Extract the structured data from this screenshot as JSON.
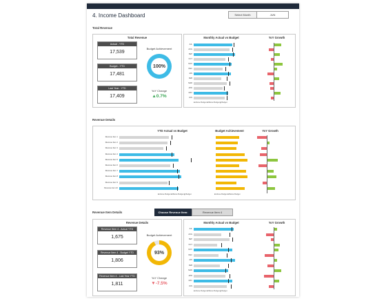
{
  "header": {
    "title": "4. Income Dashboard",
    "select_month_label": "Select Month",
    "select_month_value": "JUN"
  },
  "sections": {
    "total_revenue": "Total Revenue",
    "revenue_details": "Revenue Details",
    "revenue_item_details": "Revenue Item Details"
  },
  "total": {
    "panel_title": "Total Revenue",
    "actual_label": "Actual - YTD",
    "actual_value": "17,539",
    "budget_label": "Budget - YTD",
    "budget_value": "17,481",
    "lastyear_label": "Last Year - YTD",
    "lastyear_value": "17,409",
    "achievement_label": "Budget Achievement",
    "achievement_value": "100%",
    "achievement_fraction": 1.0,
    "yoy_label": "YoY Change",
    "yoy_value": "▲0.7%",
    "monthly_title": "Monthly Actual vs Budget",
    "growth_title": "YoY Growth",
    "months": [
      "JUL",
      "AUG",
      "SEP",
      "OCT",
      "NOV",
      "DEC",
      "JAN",
      "FEB",
      "MAR",
      "APR",
      "MAY",
      "JUN"
    ],
    "legend": "■ Above Budget  ■ Below Budget  ▮ Budget"
  },
  "details": {
    "ytd_title": "YTD Actual vs Budget",
    "achievement_title": "Budget Achievement",
    "growth_title": "YoY Growth",
    "items": [
      "Revenue Item 1",
      "Revenue Item 2",
      "Revenue Item 3",
      "Revenue Item 4",
      "Revenue Item 5",
      "Revenue Item 6",
      "Revenue Item 7",
      "Revenue Item 8",
      "Revenue Item 9",
      "Revenue Item 10"
    ],
    "legend": "■ Above Budget  ■ Below Budget  ▮ Budget",
    "legend2": "■ Above Budget  ■ Below Budget"
  },
  "item": {
    "choose_label": "Choose Revenue Item:",
    "choose_value": "Revenue Item 4",
    "panel_title": "Revenue Details",
    "actual_label": "Revenue Item 4 - Actual YTD",
    "actual_value": "1,675",
    "budget_label": "Revenue Item 4 - Budget YTD",
    "budget_value": "1,806",
    "lastyear_label": "Revenue Item 4 - Last Year YTD",
    "lastyear_value": "1,811",
    "achievement_label": "Budget Achievement",
    "achievement_value": "93%",
    "achievement_fraction": 0.93,
    "yoy_label": "YoY Change",
    "yoy_value": "▼-7.5%",
    "monthly_title": "Monthly Actual vs Budget",
    "growth_title": "YoY Growth",
    "months": [
      "JUL",
      "AUG",
      "SEP",
      "OCT",
      "NOV",
      "DEC",
      "JAN",
      "FEB",
      "MAR",
      "APR",
      "MAY",
      "JUN"
    ],
    "legend": "■ Above Budget  ■ Below Budget  ▮ Budget"
  },
  "colors": {
    "dark": "#1f2a3a",
    "blue": "#3dbbe6",
    "gray": "#d4d4d4",
    "gold": "#f2b705",
    "green": "#8dc63f",
    "red": "#e8636b"
  }
}
